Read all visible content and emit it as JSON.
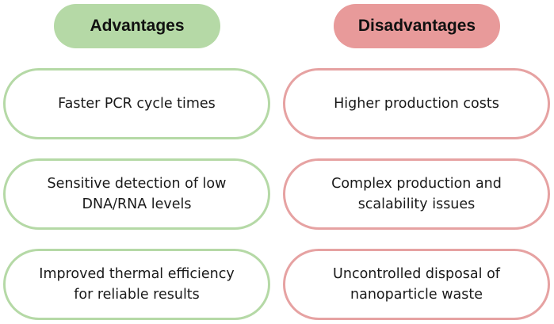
{
  "colors": {
    "advantages_fill": "#b5d9a6",
    "advantages_border": "#b5d9a6",
    "disadvantages_fill": "#e89a9a",
    "disadvantages_border": "#e6a2a2"
  },
  "advantages": {
    "title": "Advantages",
    "items": [
      {
        "text": "Faster PCR cycle times"
      },
      {
        "text": "Sensitive detection of low DNA/RNA levels"
      },
      {
        "text": "Improved thermal efficiency for reliable results"
      }
    ]
  },
  "disadvantages": {
    "title": "Disadvantages",
    "items": [
      {
        "text": "Higher production costs"
      },
      {
        "text": "Complex production and scalability issues"
      },
      {
        "text": "Uncontrolled disposal of nanoparticle waste"
      }
    ]
  }
}
